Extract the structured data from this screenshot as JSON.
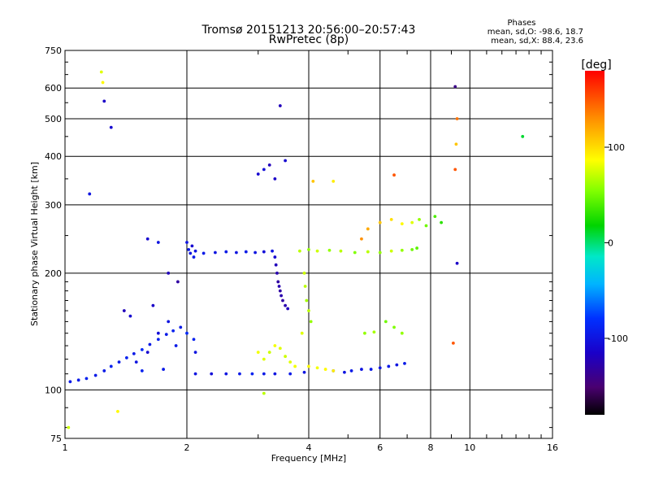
{
  "header": {
    "title_line1": "Tromsø 20151213 20:56:00–20:57:43",
    "title_line2": "RwPretec (8p)"
  },
  "stats": {
    "heading": "Phases",
    "line_o": "mean, sd,O: -98.6, 18.7",
    "line_x": "mean, sd,X:  88.4, 23.6"
  },
  "colorbar": {
    "unit_label": "[deg]",
    "tick_labels": [
      "100",
      "0",
      "-100"
    ],
    "ticks": [
      100,
      0,
      -100
    ],
    "range": [
      -180,
      180
    ],
    "colormap": "rainbow (black→purple→blue→cyan→green→yellow→orange→red)"
  },
  "chart_data": {
    "type": "scatter",
    "xlabel": "Frequency [MHz]",
    "ylabel": "Stationary phase Virtual Height [km]",
    "x_scale": "log2",
    "y_scale": "log",
    "xlim": [
      1,
      16
    ],
    "ylim": [
      75,
      750
    ],
    "x_ticks": [
      1,
      2,
      4,
      6,
      8,
      10,
      16
    ],
    "x_tick_labels": [
      "1",
      "2",
      "4",
      "6",
      "8",
      "10",
      "16"
    ],
    "y_ticks": [
      75,
      100,
      200,
      300,
      400,
      500,
      600,
      750
    ],
    "y_tick_labels": [
      "75",
      "100",
      "200",
      "300",
      "400",
      "500",
      "600",
      "750"
    ],
    "grid": true,
    "color_encodes": "phase [deg]",
    "series": [
      {
        "points": [
          [
            1.03,
            105,
            -95
          ],
          [
            1.08,
            106,
            -95
          ],
          [
            1.13,
            107,
            -90
          ],
          [
            1.19,
            109,
            -95
          ],
          [
            1.25,
            112,
            -95
          ],
          [
            1.3,
            115,
            -90
          ],
          [
            1.36,
            118,
            -95
          ],
          [
            1.42,
            121,
            -90
          ],
          [
            1.48,
            124,
            -95
          ],
          [
            1.55,
            127,
            -85
          ],
          [
            1.62,
            131,
            -95
          ],
          [
            1.7,
            135,
            -90
          ],
          [
            1.78,
            139,
            -95
          ],
          [
            1.85,
            142,
            -90
          ],
          [
            1.93,
            145,
            -95
          ],
          [
            2.0,
            140,
            -85
          ],
          [
            2.08,
            135,
            -90
          ],
          [
            1.5,
            118,
            -100
          ],
          [
            1.6,
            125,
            -110
          ],
          [
            1.7,
            140,
            -105
          ],
          [
            1.8,
            150,
            -100
          ],
          [
            1.45,
            155,
            -110
          ],
          [
            1.4,
            160,
            -120
          ],
          [
            1.65,
            165,
            -115
          ],
          [
            1.88,
            130,
            -95
          ],
          [
            2.1,
            125,
            -100
          ],
          [
            1.55,
            112,
            -90
          ],
          [
            1.75,
            113,
            -95
          ],
          [
            1.6,
            245,
            -110
          ],
          [
            1.7,
            240,
            -100
          ],
          [
            1.8,
            200,
            -120
          ],
          [
            1.9,
            190,
            -130
          ],
          [
            2.0,
            240,
            -100
          ],
          [
            2.02,
            230,
            -95
          ],
          [
            2.04,
            225,
            -100
          ],
          [
            2.06,
            235,
            -110
          ],
          [
            2.08,
            220,
            -95
          ],
          [
            2.1,
            228,
            -100
          ],
          [
            2.2,
            225,
            -95
          ],
          [
            2.35,
            226,
            -100
          ],
          [
            2.5,
            227,
            -95
          ],
          [
            2.65,
            226,
            -100
          ],
          [
            2.8,
            227,
            -95
          ],
          [
            2.95,
            226,
            -100
          ],
          [
            3.1,
            227,
            -105
          ],
          [
            3.25,
            228,
            -100
          ],
          [
            3.3,
            220,
            -110
          ],
          [
            3.32,
            210,
            -120
          ],
          [
            3.34,
            200,
            -125
          ],
          [
            3.36,
            190,
            -130
          ],
          [
            3.38,
            185,
            -125
          ],
          [
            3.4,
            180,
            -130
          ],
          [
            3.42,
            175,
            -125
          ],
          [
            3.45,
            170,
            -130
          ],
          [
            3.5,
            165,
            -125
          ],
          [
            3.55,
            162,
            -120
          ],
          [
            3.0,
            360,
            -110
          ],
          [
            3.1,
            370,
            -105
          ],
          [
            3.2,
            380,
            -120
          ],
          [
            3.3,
            350,
            -115
          ],
          [
            3.5,
            390,
            -110
          ],
          [
            3.4,
            540,
            -120
          ],
          [
            1.15,
            320,
            -100
          ],
          [
            1.25,
            555,
            -115
          ],
          [
            1.3,
            475,
            -110
          ],
          [
            9.2,
            605,
            -140
          ],
          [
            9.3,
            212,
            -115
          ],
          [
            2.1,
            110,
            -100
          ],
          [
            2.3,
            110,
            -105
          ],
          [
            2.5,
            110,
            -100
          ],
          [
            2.7,
            110,
            -95
          ],
          [
            2.9,
            110,
            -90
          ],
          [
            3.1,
            110,
            -95
          ],
          [
            3.3,
            110,
            -100
          ],
          [
            3.6,
            110,
            -95
          ],
          [
            3.9,
            111,
            -100
          ],
          [
            4.6,
            112,
            -95
          ],
          [
            4.9,
            111,
            -100
          ],
          [
            5.1,
            112,
            -95
          ],
          [
            5.4,
            113,
            -100
          ],
          [
            5.7,
            113,
            -95
          ],
          [
            6.0,
            114,
            -100
          ],
          [
            6.3,
            115,
            -95
          ],
          [
            6.6,
            116,
            -100
          ],
          [
            6.9,
            117,
            -95
          ]
        ]
      },
      {
        "points": [
          [
            3.8,
            228,
            70
          ],
          [
            4.0,
            230,
            60
          ],
          [
            4.2,
            228,
            75
          ],
          [
            4.5,
            229,
            60
          ],
          [
            4.8,
            228,
            70
          ],
          [
            5.2,
            226,
            55
          ],
          [
            5.6,
            227,
            70
          ],
          [
            6.0,
            226,
            60
          ],
          [
            6.4,
            228,
            75
          ],
          [
            6.8,
            229,
            60
          ],
          [
            7.2,
            230,
            50
          ],
          [
            7.4,
            232,
            45
          ],
          [
            3.9,
            200,
            75
          ],
          [
            3.92,
            185,
            70
          ],
          [
            3.95,
            170,
            65
          ],
          [
            4.0,
            160,
            70
          ],
          [
            4.05,
            150,
            60
          ],
          [
            3.85,
            140,
            80
          ],
          [
            3.0,
            125,
            85
          ],
          [
            3.1,
            120,
            80
          ],
          [
            3.2,
            125,
            75
          ],
          [
            3.3,
            130,
            85
          ],
          [
            3.4,
            128,
            80
          ],
          [
            3.5,
            122,
            75
          ],
          [
            3.6,
            118,
            80
          ],
          [
            3.7,
            115,
            85
          ],
          [
            4.0,
            115,
            90
          ],
          [
            4.2,
            114,
            85
          ],
          [
            4.4,
            113,
            90
          ],
          [
            4.6,
            112,
            95
          ],
          [
            5.5,
            140,
            60
          ],
          [
            5.8,
            141,
            65
          ],
          [
            6.2,
            150,
            50
          ],
          [
            6.5,
            145,
            55
          ],
          [
            6.8,
            140,
            60
          ],
          [
            5.4,
            245,
            130
          ],
          [
            5.6,
            260,
            120
          ],
          [
            6.0,
            270,
            110
          ],
          [
            6.4,
            275,
            100
          ],
          [
            6.8,
            268,
            90
          ],
          [
            7.2,
            270,
            80
          ],
          [
            7.5,
            275,
            60
          ],
          [
            7.8,
            265,
            50
          ],
          [
            8.2,
            280,
            40
          ],
          [
            8.5,
            270,
            30
          ],
          [
            1.23,
            660,
            80
          ],
          [
            1.24,
            620,
            90
          ],
          [
            9.3,
            500,
            140
          ],
          [
            9.25,
            430,
            110
          ],
          [
            9.2,
            370,
            150
          ],
          [
            9.1,
            132,
            150
          ],
          [
            1.02,
            80,
            75
          ],
          [
            1.35,
            88,
            90
          ],
          [
            3.1,
            98,
            70
          ],
          [
            4.1,
            345,
            110
          ],
          [
            4.6,
            345,
            95
          ],
          [
            6.5,
            358,
            150
          ],
          [
            13.5,
            450,
            10
          ]
        ]
      }
    ]
  }
}
